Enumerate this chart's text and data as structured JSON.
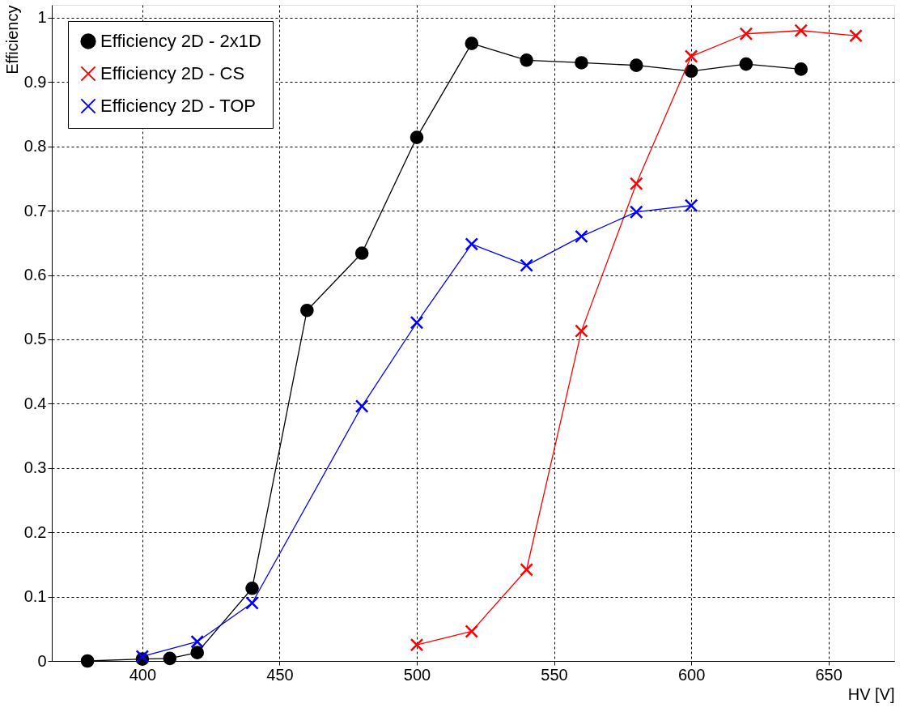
{
  "chart_data": {
    "type": "line",
    "xlabel": "HV [V]",
    "ylabel": "Efficiency",
    "xlim": [
      367,
      674
    ],
    "ylim": [
      0,
      1.02
    ],
    "xticks": [
      400,
      450,
      500,
      550,
      600,
      650
    ],
    "yticks": [
      0,
      0.1,
      0.2,
      0.3,
      0.4,
      0.5,
      0.6,
      0.7,
      0.8,
      0.9,
      1
    ],
    "grid": true,
    "legend": "top left",
    "series": [
      {
        "name": "Efficiency 2D - 2x1D",
        "color": "#000000",
        "marker": "circle",
        "x": [
          380,
          400,
          410,
          420,
          440,
          460,
          480,
          500,
          520,
          540,
          560,
          580,
          600,
          620,
          640
        ],
        "values": [
          0.0,
          0.003,
          0.004,
          0.013,
          0.113,
          0.545,
          0.634,
          0.814,
          0.96,
          0.934,
          0.93,
          0.926,
          0.917,
          0.928,
          0.92
        ]
      },
      {
        "name": "Efficiency 2D - CS",
        "color": "#ff0000",
        "marker": "cross",
        "x": [
          500,
          520,
          540,
          560,
          580,
          600,
          620,
          640,
          660
        ],
        "values": [
          0.025,
          0.046,
          0.142,
          0.513,
          0.742,
          0.94,
          0.975,
          0.98,
          0.972
        ]
      },
      {
        "name": "Efficiency 2D - TOP",
        "color": "#0000ff",
        "marker": "cross",
        "x": [
          400,
          420,
          440,
          480,
          500,
          520,
          540,
          560,
          580,
          600
        ],
        "values": [
          0.007,
          0.03,
          0.09,
          0.396,
          0.526,
          0.648,
          0.615,
          0.66,
          0.698,
          0.708
        ]
      }
    ]
  }
}
